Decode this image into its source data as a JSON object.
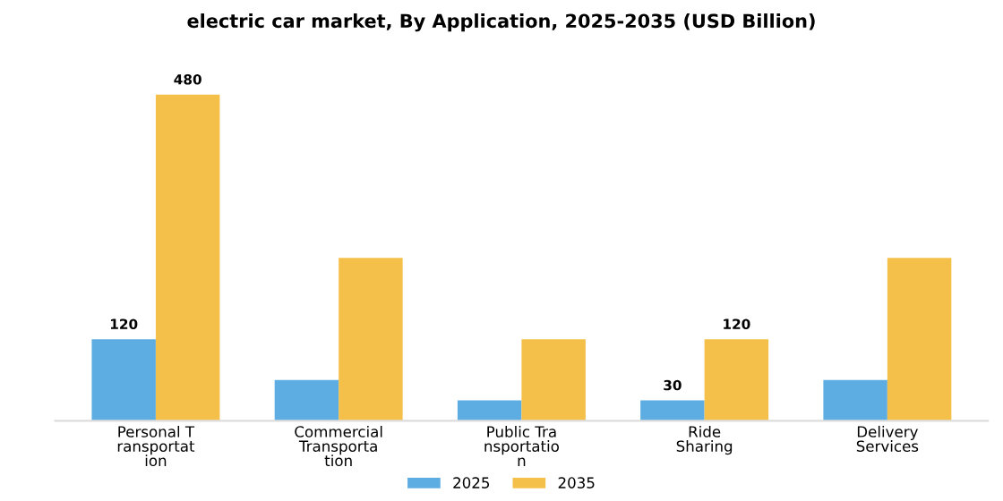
{
  "chart_data": {
    "type": "bar",
    "title": "electric car market, By Application, 2025-2035 (USD Billion)",
    "categories": [
      "Personal T\nransportat\nion",
      "Commercial\nTransporta\ntion",
      "Public Tra\nnsportatio\nn",
      "Ride\nSharing",
      "Delivery\nServices"
    ],
    "series": [
      {
        "name": "2025",
        "color": "#5dade2",
        "values": [
          120,
          60,
          30,
          30,
          60
        ],
        "value_labels": [
          "120",
          null,
          null,
          "30",
          null
        ]
      },
      {
        "name": "2035",
        "color": "#f5c04a",
        "values": [
          480,
          240,
          120,
          120,
          240
        ],
        "value_labels": [
          "480",
          null,
          null,
          "120",
          null
        ]
      }
    ],
    "legend": "bottom",
    "grid": false
  }
}
